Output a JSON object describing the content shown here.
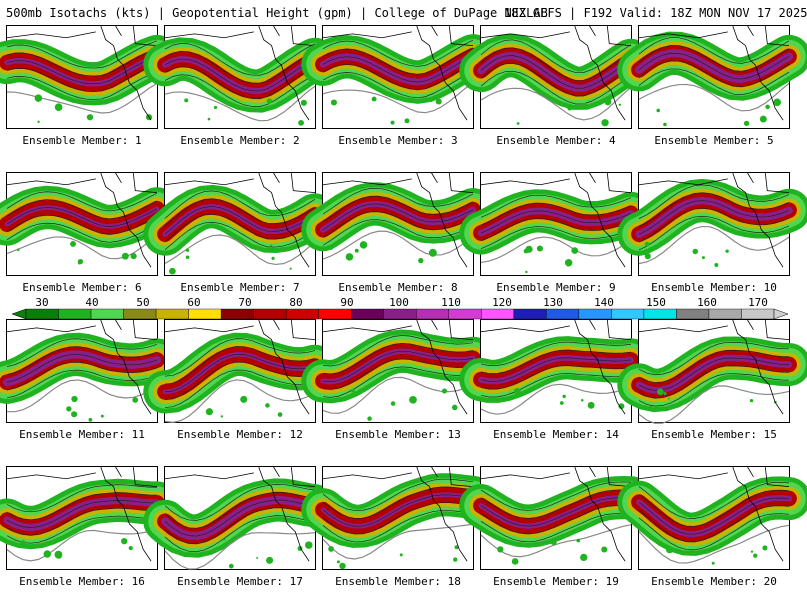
{
  "header": {
    "title_left": "500mb Isotachs (kts) | Geopotential Height (gpm) | College of DuPage NEXLAB",
    "title_right": "18Z GEFS | F192 Valid: 18Z MON NOV 17 2025"
  },
  "colorbar": {
    "ticks": [
      "30",
      "40",
      "50",
      "60",
      "70",
      "80",
      "90",
      "100",
      "110",
      "120",
      "130",
      "140",
      "150",
      "160",
      "170"
    ],
    "colors": [
      "#0a7d0a",
      "#1fb31f",
      "#50d650",
      "#8a8a1a",
      "#c7b300",
      "#ffe000",
      "#8b0000",
      "#b30000",
      "#d10000",
      "#ff0000",
      "#6a005a",
      "#8a1f8a",
      "#b42fb4",
      "#d23cd2",
      "#ff55ff",
      "#1e1eb4",
      "#1e5ae6",
      "#2896ff",
      "#32c8ff",
      "#00e6e6",
      "#808080",
      "#a9a9a9",
      "#c8c8c8"
    ]
  },
  "members": [
    {
      "label": "Ensemble Member: 1"
    },
    {
      "label": "Ensemble Member: 2"
    },
    {
      "label": "Ensemble Member: 3"
    },
    {
      "label": "Ensemble Member: 4"
    },
    {
      "label": "Ensemble Member: 5"
    },
    {
      "label": "Ensemble Member: 6"
    },
    {
      "label": "Ensemble Member: 7"
    },
    {
      "label": "Ensemble Member: 8"
    },
    {
      "label": "Ensemble Member: 9"
    },
    {
      "label": "Ensemble Member: 10"
    },
    {
      "label": "Ensemble Member: 11"
    },
    {
      "label": "Ensemble Member: 12"
    },
    {
      "label": "Ensemble Member: 13"
    },
    {
      "label": "Ensemble Member: 14"
    },
    {
      "label": "Ensemble Member: 15"
    },
    {
      "label": "Ensemble Member: 16"
    },
    {
      "label": "Ensemble Member: 17"
    },
    {
      "label": "Ensemble Member: 18"
    },
    {
      "label": "Ensemble Member: 19"
    },
    {
      "label": "Ensemble Member: 20"
    }
  ]
}
